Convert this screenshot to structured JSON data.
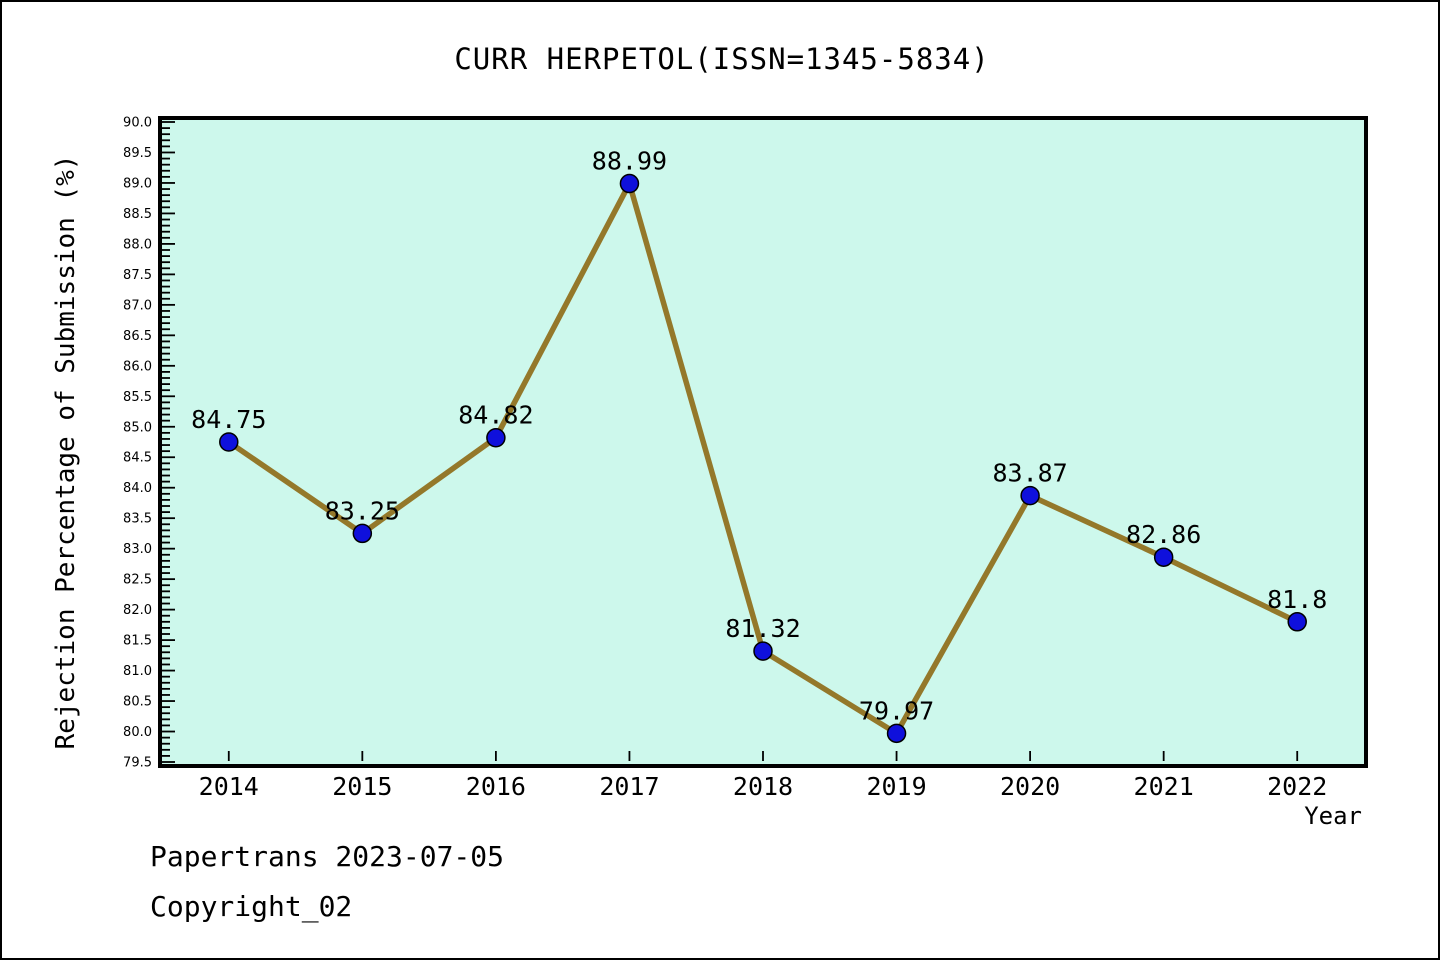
{
  "footer": {
    "source_line": "Papertrans 2023-07-05",
    "copyright_line": "Copyright_02"
  },
  "chart_data": {
    "type": "line",
    "title": "CURR HERPETOL(ISSN=1345-5834)",
    "xlabel": "Year",
    "ylabel": "Rejection Percentage of Submission (%)",
    "x": [
      2014,
      2015,
      2016,
      2017,
      2018,
      2019,
      2020,
      2021,
      2022
    ],
    "values": [
      84.75,
      83.25,
      84.82,
      88.99,
      81.32,
      79.97,
      83.87,
      82.86,
      81.8
    ],
    "point_labels": [
      "84.75",
      "83.25",
      "84.82",
      "88.99",
      "81.32",
      "79.97",
      "83.87",
      "82.86",
      "81.8"
    ],
    "series_name": "Rejection Percentage",
    "xlim": [
      2013.5,
      2022.5
    ],
    "ylim": [
      79.5,
      90.0
    ],
    "ytick_step": 0.5,
    "yminor_step": 0.1,
    "grid": false,
    "legend": null,
    "tick_direction": "in",
    "colors": {
      "line": "#94782a",
      "marker": "#0f10dc",
      "marker_edge": "#000000",
      "plot_bg": "#cdf8ec",
      "axis": "#000000",
      "text": "#000000"
    }
  }
}
